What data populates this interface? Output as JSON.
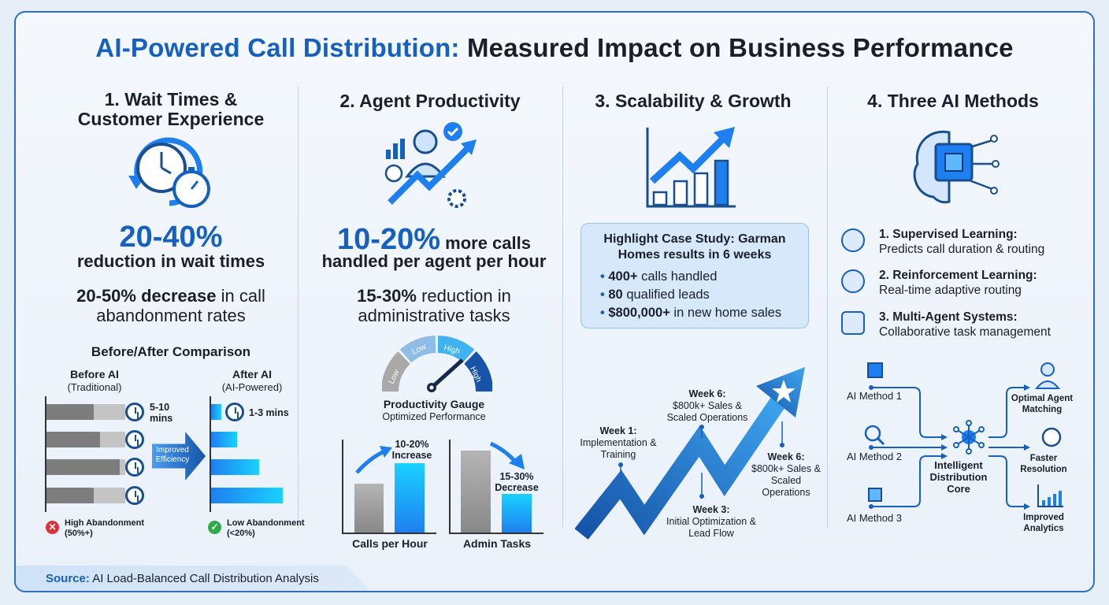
{
  "title": {
    "highlight": "AI-Powered Call Distribution:",
    "rest": " Measured Impact on Business Performance"
  },
  "col1": {
    "heading": "1. Wait Times & Customer Experience",
    "stat_big": "20-40%",
    "stat_big_text": "reduction in wait times",
    "stat2_bold": "20-50% decrease",
    "stat2_text": " in call abandonment rates",
    "comparison": {
      "title": "Before/After Comparison",
      "before_title": "Before AI",
      "before_sub": "(Traditional)",
      "after_title": "After AI",
      "after_sub": "(AI-Powered)",
      "before_time": "5-10 mins",
      "after_time": "1-3 mins",
      "arrow_label": "Improved Efficiency",
      "before_legend": "High Abandonment (50%+)",
      "after_legend": "Low Abandonment (<20%)"
    }
  },
  "col2": {
    "heading": "2. Agent Productivity",
    "stat_big": "10-20%",
    "stat_big_text": " more calls",
    "stat_line2": "handled per agent per hour",
    "stat2_bold": "15-30%",
    "stat2_text": " reduction in administrative tasks",
    "gauge": {
      "segments": [
        "Low",
        "Low",
        "High",
        "High"
      ],
      "title": "Productivity Gauge",
      "subtitle": "Optimized Performance"
    },
    "chart_calls": {
      "label": "Calls per Hour",
      "annotation": "10-20% Increase"
    },
    "chart_admin": {
      "label": "Admin Tasks",
      "annotation": "15-30% Decrease"
    }
  },
  "col3": {
    "heading": "3. Scalability & Growth",
    "case": {
      "title": "Highlight Case Study: Garman Homes results in 6 weeks",
      "items": [
        {
          "bold": "400+",
          "text": " calls handled"
        },
        {
          "bold": "80",
          "text": " qualified leads"
        },
        {
          "bold": "$800,000+",
          "text": " in new home sales"
        }
      ]
    },
    "milestones": [
      {
        "title": "Week 1:",
        "text": "Implementation & Training"
      },
      {
        "title": "Week 3:",
        "text": "Initial Optimization & Lead Flow"
      },
      {
        "title": "Week 6:",
        "text": "$800k+ Sales & Scaled Operations"
      },
      {
        "title": "Week 6:",
        "text": "$800k+ Sales & Scaled Operations"
      }
    ]
  },
  "col4": {
    "heading": "4. Three AI Methods",
    "methods": [
      {
        "title": "1. Supervised Learning:",
        "desc": "Predicts call duration & routing"
      },
      {
        "title": "2. Reinforcement Learning:",
        "desc": "Real-time adaptive routing"
      },
      {
        "title": "3. Multi-Agent Systems:",
        "desc": "Collaborative task management"
      }
    ],
    "flow": {
      "inputs": [
        "AI Method 1",
        "AI Method 2",
        "AI Method 3"
      ],
      "core": "Intelligent Distribution Core",
      "outputs": [
        "Optimal Agent Matching",
        "Faster Resolution",
        "Improved Analytics"
      ]
    }
  },
  "footer": {
    "label": "Source:",
    "text": " AI Load-Balanced Call Distribution Analysis"
  },
  "colors": {
    "accent": "#1660c0",
    "cyan": "#19d2ff",
    "gray": "#7d7d7d"
  }
}
